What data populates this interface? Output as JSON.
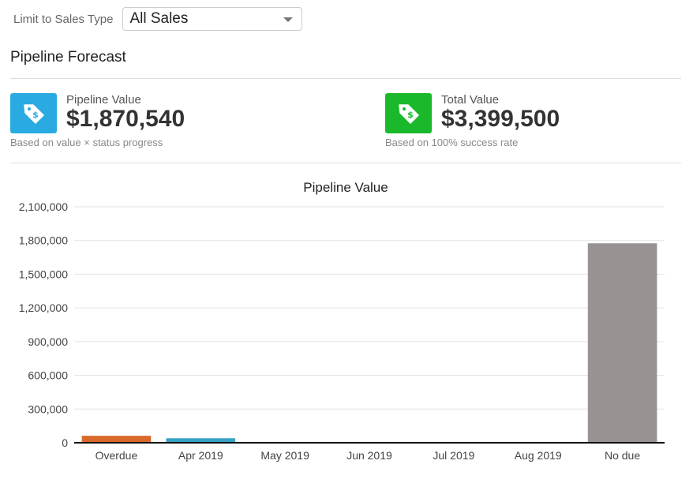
{
  "filter": {
    "label": "Limit to Sales Type",
    "selected": "All Sales"
  },
  "section": {
    "title": "Pipeline Forecast"
  },
  "kpis": {
    "pipeline": {
      "label": "Pipeline Value",
      "value": "$1,870,540",
      "note": "Based on value × status progress",
      "color": "#29abe2",
      "icon": "tag-dollar-icon"
    },
    "total": {
      "label": "Total Value",
      "value": "$3,399,500",
      "note": "Based on 100% success rate",
      "color": "#1ab92b",
      "icon": "tag-dollar-icon"
    }
  },
  "chart_data": {
    "type": "bar",
    "title": "Pipeline Value",
    "categories": [
      "Overdue",
      "Apr 2019",
      "May 2019",
      "Jun 2019",
      "Jul 2019",
      "Aug 2019",
      "No due"
    ],
    "values": [
      62000,
      40000,
      0,
      0,
      0,
      0,
      1775000
    ],
    "colors": [
      "#d9692b",
      "#35a2c4",
      "#888888",
      "#888888",
      "#888888",
      "#888888",
      "#989392"
    ],
    "ylim": [
      0,
      2100000
    ],
    "yticks": [
      0,
      300000,
      600000,
      900000,
      1200000,
      1500000,
      1800000,
      2100000
    ],
    "ytick_labels": [
      "0",
      "300,000",
      "600,000",
      "900,000",
      "1,200,000",
      "1,500,000",
      "1,800,000",
      "2,100,000"
    ],
    "grid": true,
    "legend": "none"
  }
}
